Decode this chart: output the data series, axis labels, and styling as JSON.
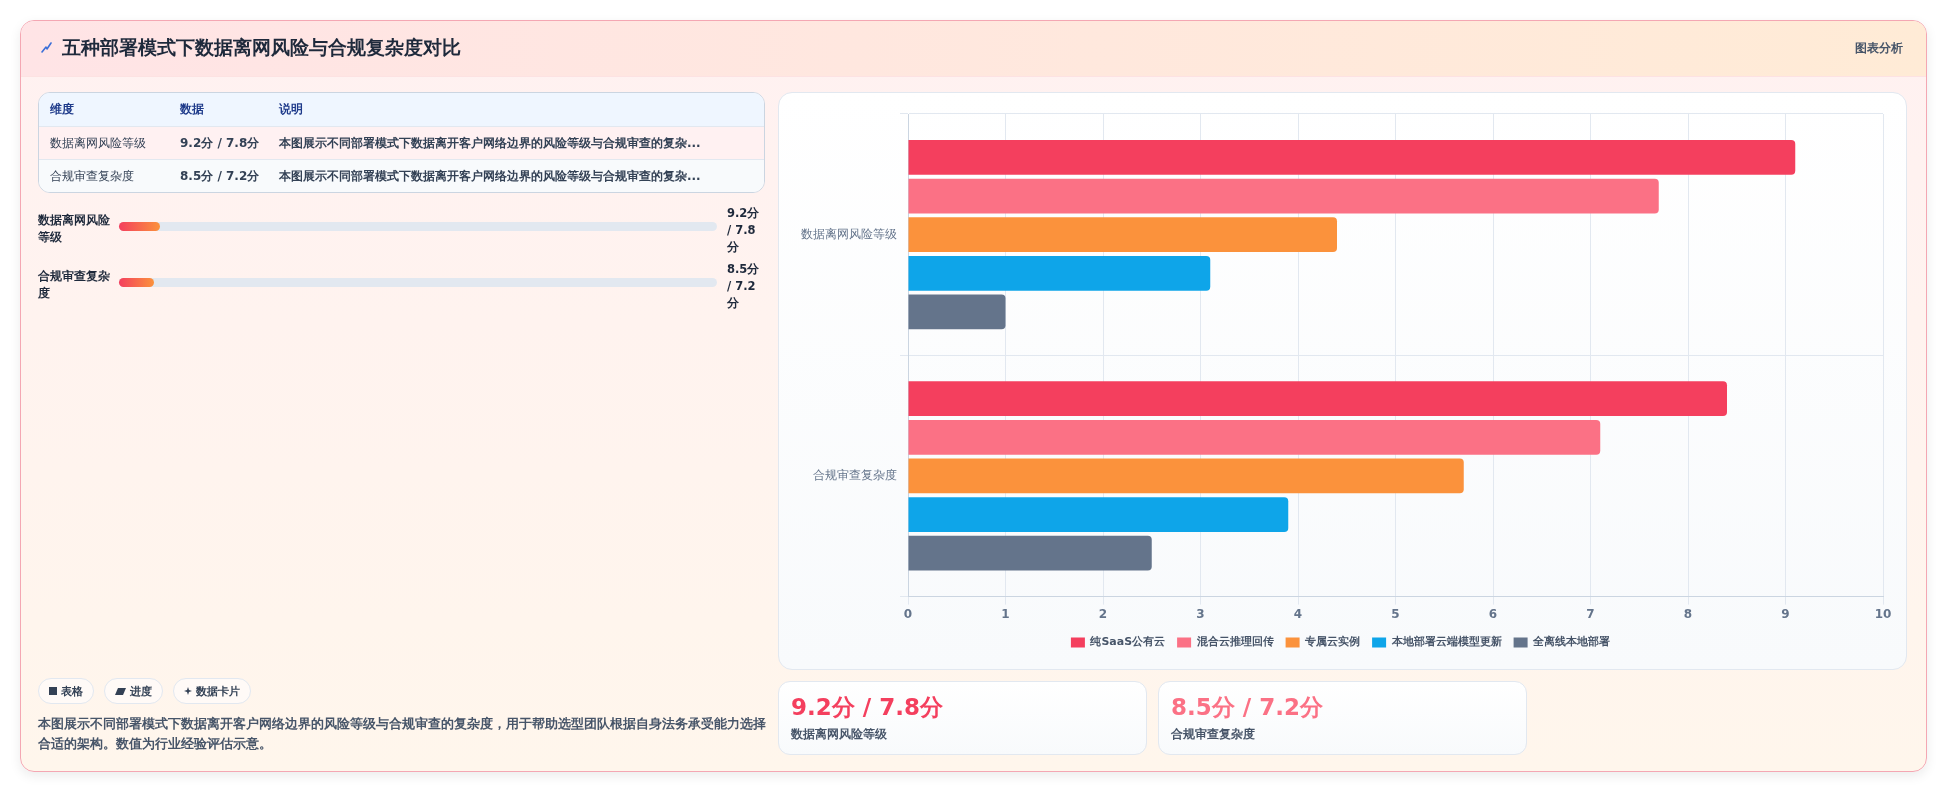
{
  "chart_data": {
    "type": "bar",
    "orientation": "horizontal",
    "title": "五种部署模式下数据离网风险与合规复杂度对比",
    "categories": [
      "数据离网风险等级",
      "合规审查复杂度"
    ],
    "series": [
      {
        "name": "纯SaaS公有云",
        "color": "#f43f5e",
        "values": [
          9.1,
          8.4
        ]
      },
      {
        "name": "混合云推理回传",
        "color": "#fb7185",
        "values": [
          7.7,
          7.1
        ]
      },
      {
        "name": "专属云实例",
        "color": "#fb923c",
        "values": [
          4.4,
          5.7
        ]
      },
      {
        "name": "本地部署云端模型更新",
        "color": "#0ea5e9",
        "values": [
          3.1,
          3.9
        ]
      },
      {
        "name": "全离线本地部署",
        "color": "#64748b",
        "values": [
          1.0,
          2.5
        ]
      }
    ],
    "xlim": [
      0,
      10
    ],
    "xticks": [
      0,
      1,
      2,
      3,
      4,
      5,
      6,
      7,
      8,
      9,
      10
    ],
    "grid": true,
    "legend": "bottom",
    "annotations": [
      "图表分析",
      "维度",
      "数据",
      "说明",
      "数据离网风险等级",
      "9.2分 / 7.8分",
      "本图展示不同部署模式下数据离开客户网络边界的风险等级与合规审查的复杂...",
      "合规审查复杂度",
      "8.5分 / 7.2分",
      "本图展示不同部署模式下数据离开客户网络边界的风险等级与合规审查的复杂...",
      "数据离网风险等级",
      "9.2分 / 7.8分",
      "合规审查复杂度",
      "8.5分 / 7.2分",
      "表格",
      "进度",
      "数据卡片",
      "本图展示不同部署模式下数据离开客户网络边界的风险等级与合规审查的复杂度，用于帮助选型团队根据自身法务承受能力选择合适的架构。数值为行业经验评估示意。",
      "9.2分 / 7.8分",
      "数据离网风险等级",
      "8.5分 / 7.2分",
      "合规审查复杂度"
    ]
  }
}
